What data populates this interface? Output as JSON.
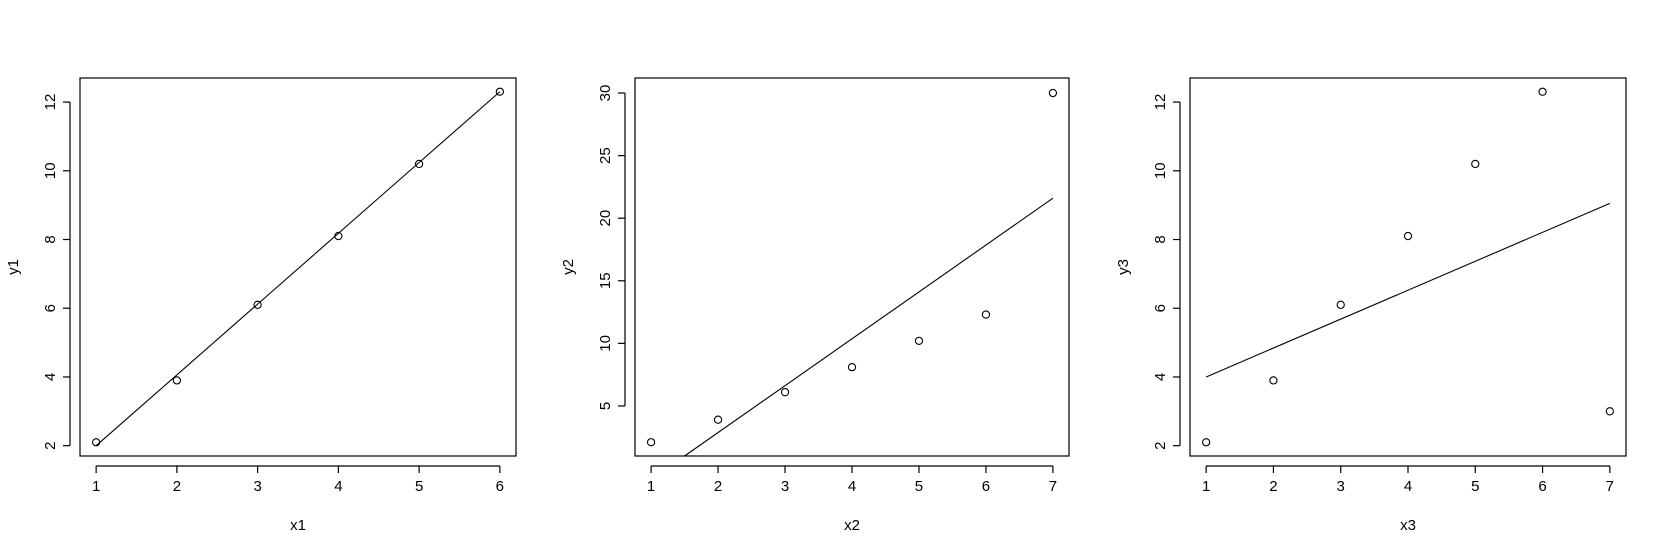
{
  "chart_data": [
    {
      "type": "scatter",
      "title": "",
      "xlabel": "x1",
      "ylabel": "y1",
      "x": [
        1,
        2,
        3,
        4,
        5,
        6
      ],
      "y": [
        2.1,
        3.9,
        6.1,
        8.1,
        10.2,
        12.3
      ],
      "xlim": [
        0.8,
        6.2
      ],
      "ylim": [
        1.7,
        12.7
      ],
      "xticks": [
        1,
        2,
        3,
        4,
        5,
        6
      ],
      "yticks": [
        2,
        4,
        6,
        8,
        10,
        12
      ],
      "xtick_labels": [
        "1",
        "2",
        "3",
        "4",
        "5",
        "6"
      ],
      "ytick_labels": [
        "2",
        "4",
        "6",
        "8",
        "10",
        "12"
      ],
      "fit_line": {
        "x": [
          1,
          6
        ],
        "y": [
          2.0,
          12.3
        ]
      },
      "grid": false,
      "legend": "none"
    },
    {
      "type": "scatter",
      "title": "",
      "xlabel": "x2",
      "ylabel": "y2",
      "x": [
        1,
        2,
        3,
        4,
        5,
        6,
        7
      ],
      "y": [
        2.1,
        3.9,
        6.1,
        8.1,
        10.2,
        12.3,
        30
      ],
      "xlim": [
        0.76,
        7.24
      ],
      "ylim": [
        1.0,
        31.2
      ],
      "xticks": [
        1,
        2,
        3,
        4,
        5,
        6,
        7
      ],
      "yticks": [
        5,
        10,
        15,
        20,
        25,
        30
      ],
      "xtick_labels": [
        "1",
        "2",
        "3",
        "4",
        "5",
        "6",
        "7"
      ],
      "ytick_labels": [
        "5",
        "10",
        "15",
        "20",
        "25",
        "30"
      ],
      "fit_line": {
        "x": [
          1.5,
          7
        ],
        "y": [
          1.0,
          21.6
        ]
      },
      "grid": false,
      "legend": "none"
    },
    {
      "type": "scatter",
      "title": "",
      "xlabel": "x3",
      "ylabel": "y3",
      "x": [
        1,
        2,
        3,
        4,
        5,
        6,
        7
      ],
      "y": [
        2.1,
        3.9,
        6.1,
        8.1,
        10.2,
        12.3,
        3.0
      ],
      "xlim": [
        0.76,
        7.24
      ],
      "ylim": [
        1.7,
        12.7
      ],
      "xticks": [
        1,
        2,
        3,
        4,
        5,
        6,
        7
      ],
      "yticks": [
        2,
        4,
        6,
        8,
        10,
        12
      ],
      "xtick_labels": [
        "1",
        "2",
        "3",
        "4",
        "5",
        "6",
        "7"
      ],
      "ytick_labels": [
        "2",
        "4",
        "6",
        "8",
        "10",
        "12"
      ],
      "fit_line": {
        "x": [
          1,
          7
        ],
        "y": [
          4.0,
          9.05
        ]
      },
      "grid": false,
      "legend": "none"
    }
  ]
}
